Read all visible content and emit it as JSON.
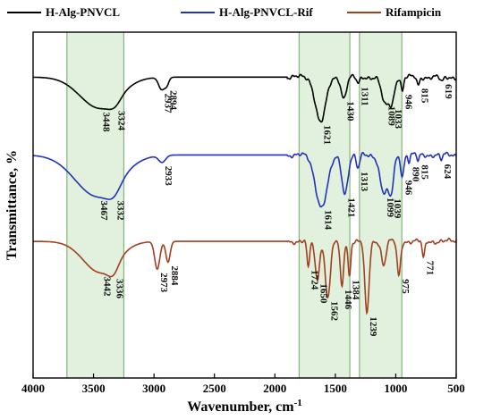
{
  "chart_data": {
    "type": "line",
    "xlabel": "Wavenumber, cm",
    "xlabel_sup": "-1",
    "ylabel": "Transmittance, %",
    "xlim": [
      4000,
      500
    ],
    "x_ticks": [
      4000,
      3500,
      3000,
      2500,
      2000,
      1500,
      1000,
      500
    ],
    "grid": false,
    "legend_position": "top",
    "highlight_bands": [
      {
        "from": 3720,
        "to": 3250,
        "color": "#d7ecd2",
        "edge": "#6ea865"
      },
      {
        "from": 1800,
        "to": 1380,
        "color": "#d7ecd2",
        "edge": "#6ea865"
      },
      {
        "from": 1300,
        "to": 950,
        "color": "#d7ecd2",
        "edge": "#6ea865"
      }
    ],
    "series": [
      {
        "name": "H-Alg-PNVCL",
        "color": "#000000",
        "baseline": 0.13,
        "bands": [
          {
            "c": 3448,
            "w": 230,
            "d": 0.09
          },
          {
            "c": 3324,
            "w": 70,
            "d": 0.02
          },
          {
            "c": 2937,
            "w": 35,
            "d": 0.035
          },
          {
            "c": 2894,
            "w": 25,
            "d": 0.02
          },
          {
            "c": 1621,
            "w": 60,
            "d": 0.13
          },
          {
            "c": 1430,
            "w": 30,
            "d": 0.06
          },
          {
            "c": 1311,
            "w": 20,
            "d": 0.02
          },
          {
            "c": 1089,
            "w": 40,
            "d": 0.08
          },
          {
            "c": 1033,
            "w": 30,
            "d": 0.07
          },
          {
            "c": 946,
            "w": 15,
            "d": 0.04
          },
          {
            "c": 815,
            "w": 15,
            "d": 0.025
          },
          {
            "c": 619,
            "w": 20,
            "d": 0.015
          }
        ],
        "peaks": [
          {
            "x": 3448,
            "label": "3448"
          },
          {
            "x": 3324,
            "label": "3324"
          },
          {
            "x": 2937,
            "label": "2937"
          },
          {
            "x": 2894,
            "label": "2894"
          },
          {
            "x": 1621,
            "label": "1621"
          },
          {
            "x": 1430,
            "label": "1430"
          },
          {
            "x": 1311,
            "label": "1311"
          },
          {
            "x": 1089,
            "label": "1089"
          },
          {
            "x": 1033,
            "label": "1033"
          },
          {
            "x": 946,
            "label": "946"
          },
          {
            "x": 815,
            "label": "815"
          },
          {
            "x": 619,
            "label": "619"
          }
        ]
      },
      {
        "name": "H-Alg-PNVCL-Rif",
        "color": "#2233bb",
        "baseline": 0.355,
        "bands": [
          {
            "c": 3467,
            "w": 260,
            "d": 0.12
          },
          {
            "c": 3332,
            "w": 80,
            "d": 0.03
          },
          {
            "c": 2933,
            "w": 40,
            "d": 0.02
          },
          {
            "c": 1614,
            "w": 70,
            "d": 0.15
          },
          {
            "c": 1421,
            "w": 35,
            "d": 0.11
          },
          {
            "c": 1313,
            "w": 20,
            "d": 0.04
          },
          {
            "c": 1099,
            "w": 45,
            "d": 0.11
          },
          {
            "c": 1039,
            "w": 30,
            "d": 0.1
          },
          {
            "c": 946,
            "w": 18,
            "d": 0.06
          },
          {
            "c": 890,
            "w": 12,
            "d": 0.02
          },
          {
            "c": 815,
            "w": 12,
            "d": 0.02
          },
          {
            "c": 624,
            "w": 15,
            "d": 0.015
          }
        ],
        "peaks": [
          {
            "x": 3467,
            "label": "3467"
          },
          {
            "x": 3332,
            "label": "3332"
          },
          {
            "x": 2933,
            "label": "2933"
          },
          {
            "x": 1614,
            "label": "1614"
          },
          {
            "x": 1421,
            "label": "1421"
          },
          {
            "x": 1313,
            "label": "1313"
          },
          {
            "x": 1099,
            "label": "1099"
          },
          {
            "x": 1039,
            "label": "1039"
          },
          {
            "x": 946,
            "label": "946"
          },
          {
            "x": 890,
            "label": "890"
          },
          {
            "x": 815,
            "label": "815"
          },
          {
            "x": 624,
            "label": "624"
          }
        ]
      },
      {
        "name": "Rifampicin",
        "color": "#a0401f",
        "baseline": 0.605,
        "bands": [
          {
            "c": 3442,
            "w": 200,
            "d": 0.09
          },
          {
            "c": 3336,
            "w": 60,
            "d": 0.03
          },
          {
            "c": 2973,
            "w": 30,
            "d": 0.08
          },
          {
            "c": 2884,
            "w": 25,
            "d": 0.06
          },
          {
            "c": 1724,
            "w": 15,
            "d": 0.08
          },
          {
            "c": 1650,
            "w": 25,
            "d": 0.11
          },
          {
            "c": 1562,
            "w": 30,
            "d": 0.16
          },
          {
            "c": 1446,
            "w": 20,
            "d": 0.13
          },
          {
            "c": 1384,
            "w": 15,
            "d": 0.1
          },
          {
            "c": 1239,
            "w": 25,
            "d": 0.21
          },
          {
            "c": 1100,
            "w": 25,
            "d": 0.07
          },
          {
            "c": 975,
            "w": 20,
            "d": 0.1
          },
          {
            "c": 771,
            "w": 15,
            "d": 0.05
          }
        ],
        "peaks": [
          {
            "x": 3442,
            "label": "3442"
          },
          {
            "x": 3336,
            "label": "3336"
          },
          {
            "x": 2973,
            "label": "2973"
          },
          {
            "x": 2884,
            "label": "2884"
          },
          {
            "x": 1724,
            "label": "1724"
          },
          {
            "x": 1650,
            "label": "1650"
          },
          {
            "x": 1562,
            "label": "1562"
          },
          {
            "x": 1446,
            "label": "1446"
          },
          {
            "x": 1384,
            "label": "1384"
          },
          {
            "x": 1239,
            "label": "1239"
          },
          {
            "x": 975,
            "label": "975"
          },
          {
            "x": 771,
            "label": "771"
          }
        ]
      }
    ]
  }
}
